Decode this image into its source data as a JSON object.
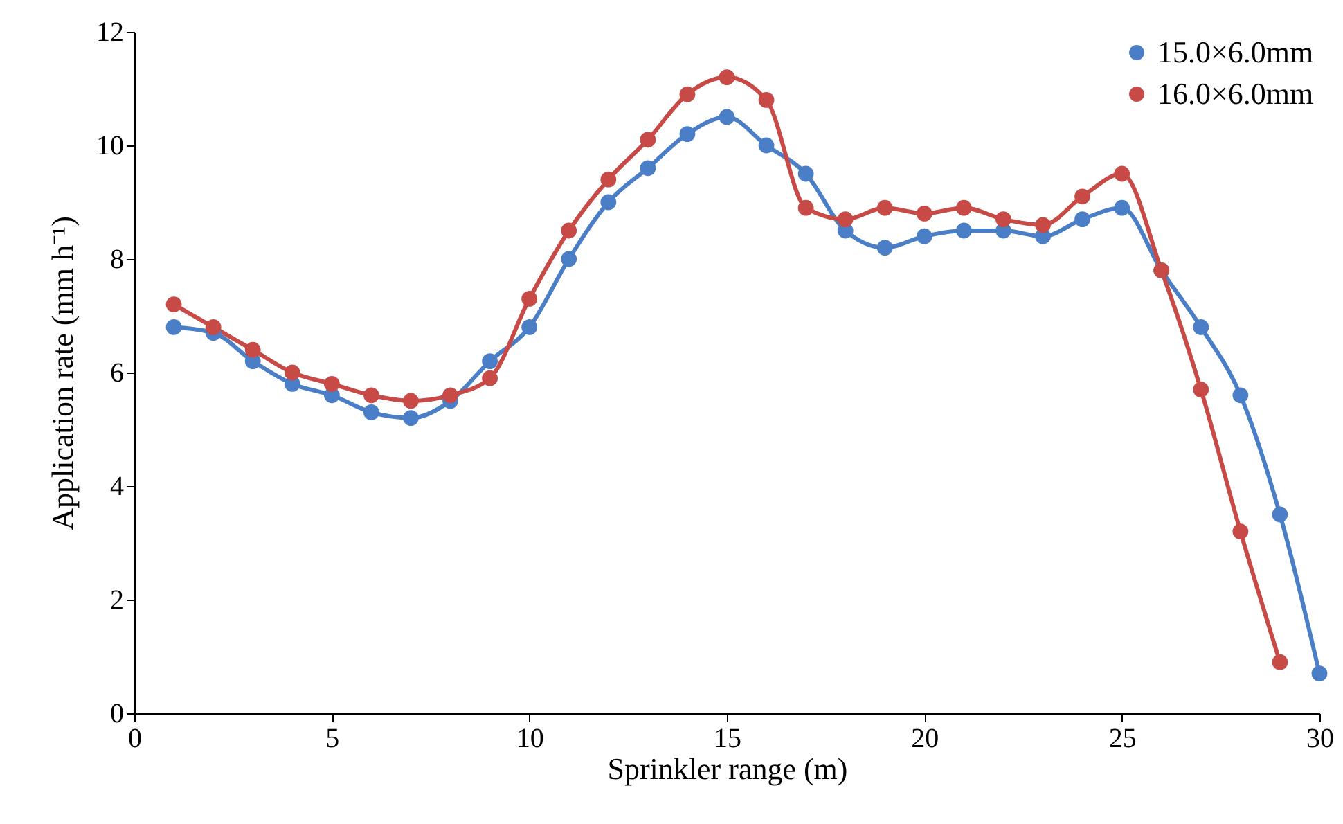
{
  "chart_data": {
    "type": "line",
    "xlabel": "Sprinkler range (m)",
    "ylabel": "Application rate (mm h⁻¹)",
    "xlim": [
      0,
      30
    ],
    "xticks": [
      0,
      5,
      10,
      15,
      20,
      25,
      30
    ],
    "ylim": [
      0,
      12
    ],
    "yticks": [
      0,
      2,
      4,
      6,
      8,
      10,
      12
    ],
    "grid": false,
    "legend": "top right",
    "marker": "circle",
    "line_style": "solid",
    "series": [
      {
        "name": "15.0×6.0mm",
        "color": "#4a7ec6",
        "x": [
          1,
          2,
          3,
          4,
          5,
          6,
          7,
          8,
          9,
          10,
          11,
          12,
          13,
          14,
          15,
          16,
          17,
          18,
          19,
          20,
          21,
          22,
          23,
          24,
          25,
          26,
          27,
          28,
          29,
          30
        ],
        "values": [
          6.8,
          6.7,
          6.2,
          5.8,
          5.6,
          5.3,
          5.2,
          5.5,
          6.2,
          6.8,
          8.0,
          9.0,
          9.6,
          10.2,
          10.5,
          10.0,
          9.5,
          8.5,
          8.2,
          8.4,
          8.5,
          8.5,
          8.4,
          8.7,
          8.9,
          7.8,
          6.8,
          5.6,
          3.5,
          0.7
        ]
      },
      {
        "name": "16.0×6.0mm",
        "color": "#c84a47",
        "x": [
          1,
          2,
          3,
          4,
          5,
          6,
          7,
          8,
          9,
          10,
          11,
          12,
          13,
          14,
          15,
          16,
          17,
          18,
          19,
          20,
          21,
          22,
          23,
          24,
          25,
          26,
          27,
          28,
          29
        ],
        "values": [
          7.2,
          6.8,
          6.4,
          6.0,
          5.8,
          5.6,
          5.5,
          5.6,
          5.9,
          7.3,
          8.5,
          9.4,
          10.1,
          10.9,
          11.2,
          10.8,
          8.9,
          8.7,
          8.9,
          8.8,
          8.9,
          8.7,
          8.6,
          9.1,
          9.5,
          7.8,
          5.7,
          3.2,
          0.9
        ]
      }
    ]
  }
}
